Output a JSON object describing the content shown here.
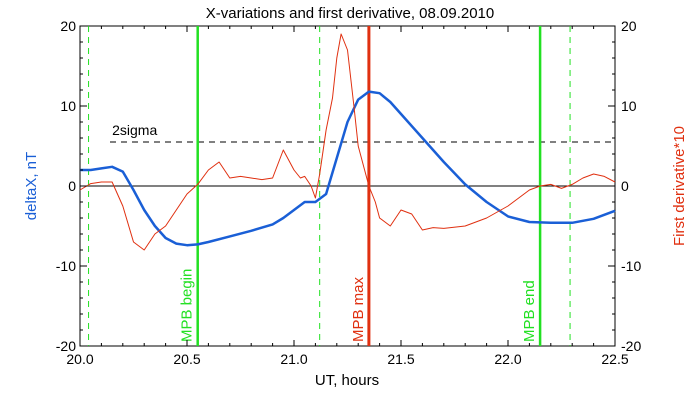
{
  "chart_data": {
    "type": "line",
    "title": "X-variations and first derivative, 08.09.2010",
    "xlabel": "UT, hours",
    "ylabel_left": "deltaX, nT",
    "ylabel_right": "First derivative*10",
    "xlim": [
      20.0,
      22.5
    ],
    "ylim_left": [
      -20,
      20
    ],
    "ylim_right": [
      -20,
      20
    ],
    "x_ticks": [
      "20.0",
      "20.5",
      "21.0",
      "21.5",
      "22.0",
      "22.5"
    ],
    "y_ticks_left": [
      "-20",
      "-10",
      "0",
      "10",
      "20"
    ],
    "y_ticks_right": [
      "-20",
      "-10",
      "0",
      "10",
      "20"
    ],
    "threshold": {
      "label": "2sigma",
      "y": 5.5
    },
    "zero_line_y": 0,
    "colors": {
      "deltaX": "#1a5fd6",
      "derivative": "#e03010",
      "mpb_solid": "#22e022",
      "mpb_dashed": "#22e022",
      "mpb_max": "#e03010",
      "axis_label_left": "#1a5fd6",
      "axis_label_right": "#e03010"
    },
    "markers": [
      {
        "x": 20.55,
        "label": "MPB begin",
        "kind": "solid-green"
      },
      {
        "x": 21.35,
        "label": "MPB max",
        "kind": "solid-red"
      },
      {
        "x": 22.15,
        "label": "MPB end",
        "kind": "solid-green"
      },
      {
        "x": 20.04,
        "label": "",
        "kind": "dashed-green"
      },
      {
        "x": 21.12,
        "label": "",
        "kind": "dashed-green"
      },
      {
        "x": 22.29,
        "label": "",
        "kind": "dashed-green"
      }
    ],
    "series": [
      {
        "axis": "left",
        "x": [
          20.0,
          20.05,
          20.1,
          20.15,
          20.2,
          20.25,
          20.3,
          20.35,
          20.4,
          20.45,
          20.5,
          20.55,
          20.6,
          20.7,
          20.8,
          20.9,
          20.95,
          21.0,
          21.05,
          21.1,
          21.15,
          21.2,
          21.25,
          21.3,
          21.35,
          21.4,
          21.45,
          21.5,
          21.6,
          21.7,
          21.8,
          21.9,
          22.0,
          22.1,
          22.2,
          22.3,
          22.4,
          22.5
        ],
        "y": [
          2.0,
          2.0,
          2.2,
          2.4,
          1.8,
          -0.5,
          -3.0,
          -5.0,
          -6.5,
          -7.2,
          -7.4,
          -7.3,
          -7.0,
          -6.3,
          -5.6,
          -4.8,
          -4.0,
          -3.0,
          -2.0,
          -2.0,
          -1.0,
          3.5,
          8.0,
          10.8,
          11.8,
          11.6,
          10.5,
          9.0,
          6.0,
          3.0,
          0.2,
          -2.0,
          -3.8,
          -4.5,
          -4.6,
          -4.6,
          -4.1,
          -3.1
        ]
      },
      {
        "axis": "right",
        "x": [
          20.0,
          20.05,
          20.1,
          20.15,
          20.2,
          20.25,
          20.3,
          20.35,
          20.4,
          20.45,
          20.5,
          20.55,
          20.6,
          20.65,
          20.7,
          20.75,
          20.8,
          20.85,
          20.9,
          20.95,
          21.0,
          21.03,
          21.05,
          21.08,
          21.1,
          21.12,
          21.15,
          21.18,
          21.2,
          21.22,
          21.25,
          21.28,
          21.3,
          21.33,
          21.35,
          21.38,
          21.4,
          21.45,
          21.5,
          21.55,
          21.6,
          21.65,
          21.7,
          21.8,
          21.9,
          22.0,
          22.05,
          22.1,
          22.15,
          22.2,
          22.25,
          22.3,
          22.35,
          22.4,
          22.45,
          22.5
        ],
        "y": [
          -0.5,
          0.3,
          0.5,
          0.5,
          -2.5,
          -7.0,
          -8.0,
          -6.0,
          -5.0,
          -3.0,
          -1.0,
          0.2,
          2.0,
          3.0,
          1.0,
          1.2,
          1.0,
          0.8,
          1.0,
          4.5,
          2.0,
          1.0,
          1.2,
          0.0,
          -1.5,
          1.5,
          7.0,
          11.0,
          16.0,
          19.0,
          17.0,
          10.0,
          5.0,
          2.0,
          0.0,
          -2.0,
          -4.0,
          -5.0,
          -3.0,
          -3.5,
          -5.5,
          -5.2,
          -5.3,
          -5.0,
          -4.0,
          -2.5,
          -1.5,
          -0.5,
          0.0,
          0.2,
          -0.3,
          0.2,
          1.0,
          1.5,
          1.2,
          0.5
        ]
      }
    ]
  }
}
